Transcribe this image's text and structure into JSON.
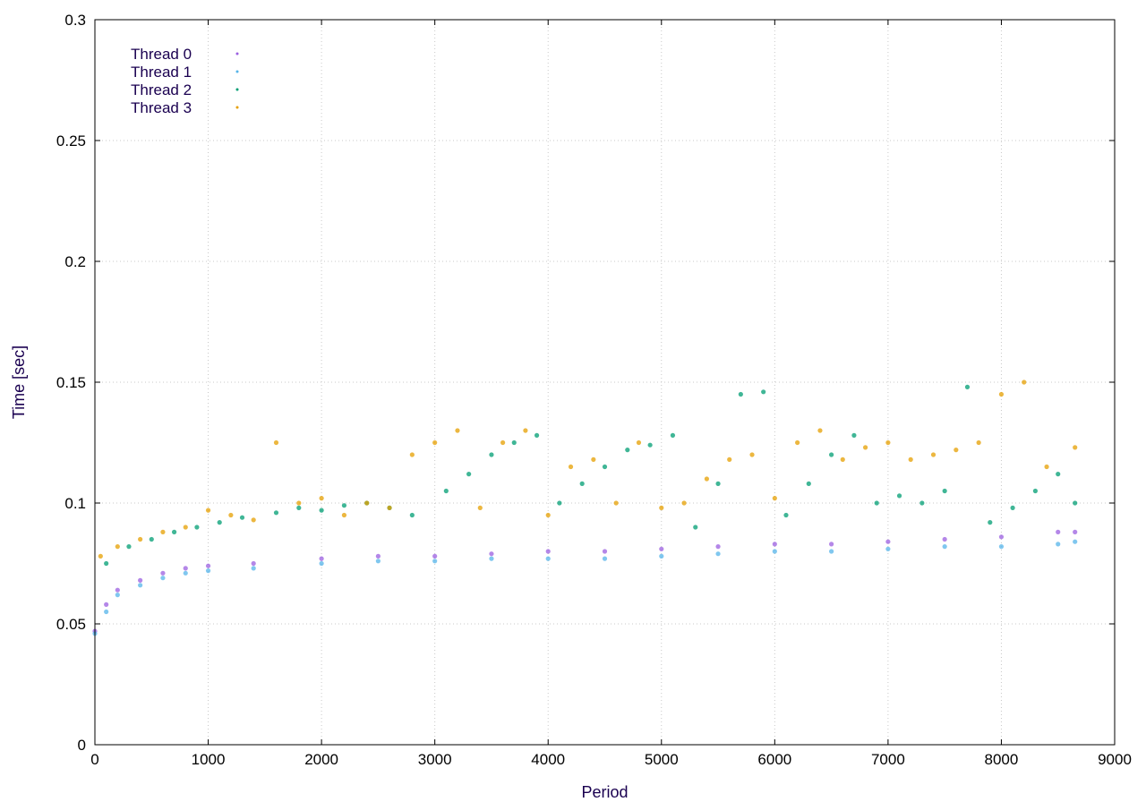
{
  "chart_data": {
    "type": "scatter",
    "title": "",
    "xlabel": "Period",
    "ylabel": "Time [sec]",
    "xlim": [
      0,
      9000
    ],
    "ylim": [
      0,
      0.3
    ],
    "x_ticks": [
      "0",
      "1000",
      "2000",
      "3000",
      "4000",
      "5000",
      "6000",
      "7000",
      "8000",
      "9000"
    ],
    "y_ticks": [
      "0",
      "0.05",
      "0.1",
      "0.15",
      "0.2",
      "0.25",
      "0.3"
    ],
    "grid": true,
    "legend_position": "top-left",
    "series": [
      {
        "name": "Thread 0",
        "color": "#9b5fe0",
        "x": [
          0,
          100,
          200,
          400,
          600,
          800,
          1000,
          1400,
          2000,
          2500,
          3000,
          3500,
          4000,
          4500,
          5000,
          5500,
          6000,
          6500,
          7000,
          7500,
          8000,
          8500,
          8650
        ],
        "y": [
          0.047,
          0.058,
          0.064,
          0.068,
          0.071,
          0.073,
          0.074,
          0.075,
          0.077,
          0.078,
          0.078,
          0.079,
          0.08,
          0.08,
          0.081,
          0.082,
          0.083,
          0.083,
          0.084,
          0.085,
          0.086,
          0.088,
          0.088
        ]
      },
      {
        "name": "Thread 1",
        "color": "#56b4e9",
        "x": [
          0,
          100,
          200,
          400,
          600,
          800,
          1000,
          1400,
          2000,
          2500,
          3000,
          3500,
          4000,
          4500,
          5000,
          5500,
          6000,
          6500,
          7000,
          7500,
          8000,
          8500,
          8650
        ],
        "y": [
          0.046,
          0.055,
          0.062,
          0.066,
          0.069,
          0.071,
          0.072,
          0.073,
          0.075,
          0.076,
          0.076,
          0.077,
          0.077,
          0.077,
          0.078,
          0.079,
          0.08,
          0.08,
          0.081,
          0.082,
          0.082,
          0.083,
          0.084
        ]
      },
      {
        "name": "Thread 2",
        "color": "#009e73",
        "x": [
          100,
          300,
          500,
          700,
          900,
          1100,
          1300,
          1600,
          1800,
          2000,
          2200,
          2400,
          2600,
          2800,
          3100,
          3300,
          3500,
          3700,
          3900,
          4100,
          4300,
          4500,
          4700,
          4900,
          5100,
          5300,
          5500,
          5700,
          5900,
          6100,
          6300,
          6500,
          6700,
          6900,
          7100,
          7300,
          7500,
          7700,
          7900,
          8100,
          8300,
          8500,
          8650
        ],
        "y": [
          0.075,
          0.082,
          0.085,
          0.088,
          0.09,
          0.092,
          0.094,
          0.096,
          0.098,
          0.097,
          0.099,
          0.1,
          0.098,
          0.095,
          0.105,
          0.112,
          0.12,
          0.125,
          0.128,
          0.1,
          0.108,
          0.115,
          0.122,
          0.124,
          0.128,
          0.09,
          0.108,
          0.145,
          0.146,
          0.095,
          0.108,
          0.12,
          0.128,
          0.1,
          0.103,
          0.1,
          0.105,
          0.148,
          0.092,
          0.098,
          0.105,
          0.112,
          0.1
        ]
      },
      {
        "name": "Thread 3",
        "color": "#e69f00",
        "x": [
          50,
          200,
          400,
          600,
          800,
          1000,
          1200,
          1400,
          1600,
          1800,
          2000,
          2200,
          2400,
          2600,
          2800,
          3000,
          3200,
          3400,
          3600,
          3800,
          4000,
          4200,
          4400,
          4600,
          4800,
          5000,
          5200,
          5400,
          5600,
          5800,
          6000,
          6200,
          6400,
          6600,
          6800,
          7000,
          7200,
          7400,
          7600,
          7800,
          8000,
          8200,
          8400,
          8650
        ],
        "y": [
          0.078,
          0.082,
          0.085,
          0.088,
          0.09,
          0.097,
          0.095,
          0.093,
          0.125,
          0.1,
          0.102,
          0.095,
          0.1,
          0.098,
          0.12,
          0.125,
          0.13,
          0.098,
          0.125,
          0.13,
          0.095,
          0.115,
          0.118,
          0.1,
          0.125,
          0.098,
          0.1,
          0.11,
          0.118,
          0.12,
          0.102,
          0.125,
          0.13,
          0.118,
          0.123,
          0.125,
          0.118,
          0.12,
          0.122,
          0.125,
          0.145,
          0.15,
          0.115,
          0.123
        ]
      }
    ]
  }
}
